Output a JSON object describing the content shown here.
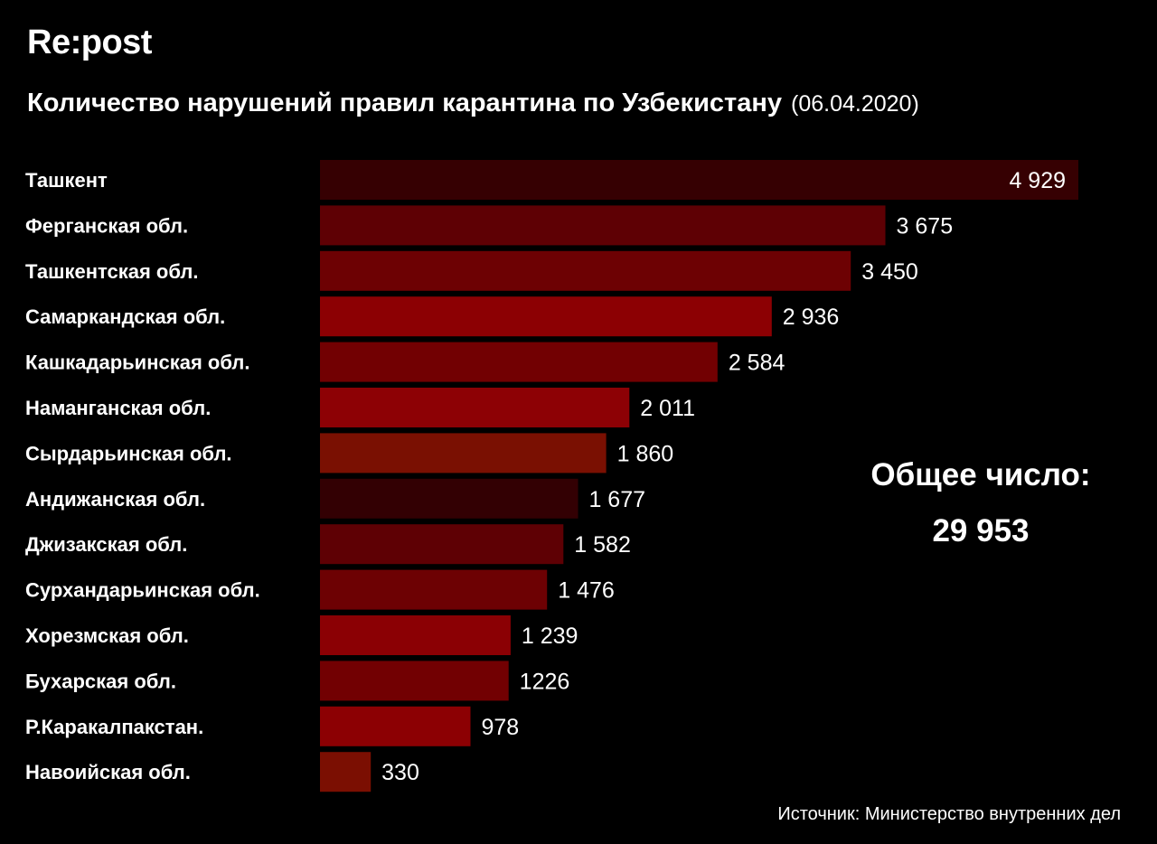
{
  "brand": "Re:post",
  "title": "Количество нарушений правил карантина по Узбекистану",
  "title_date": "(06.04.2020)",
  "total": {
    "label": "Общее число:",
    "value": "29 953"
  },
  "source": "Источник: Министерство внутренних дел",
  "chart_data": {
    "type": "bar",
    "orientation": "horizontal",
    "categories": [
      "Ташкент",
      "Ферганская обл.",
      "Ташкентская обл.",
      "Самаркандская обл.",
      "Кашкадарьинская обл.",
      "Наманганская обл.",
      "Сырдарьинская обл.",
      "Андижанская обл.",
      "Джизакская обл.",
      "Сурхандарьинская обл.",
      "Хорезмская обл.",
      "Бухарская обл.",
      "Р.Каракалпакстан.",
      "Навоийская обл."
    ],
    "values": [
      4929,
      3675,
      3450,
      2936,
      2584,
      2011,
      1860,
      1677,
      1582,
      1476,
      1239,
      1226,
      978,
      330
    ],
    "value_labels": [
      "4 929",
      "3 675",
      "3 450",
      "2 936",
      "2 584",
      "2 011",
      "1 860",
      "1 677",
      "1 582",
      "1 476",
      "1 239",
      "1226",
      "978",
      "330"
    ],
    "bar_colors": [
      "#360002",
      "#5e0004",
      "#6d0103",
      "#8c0003",
      "#720002",
      "#8d0105",
      "#7a1002",
      "#330003",
      "#5e0004",
      "#6d0103",
      "#8b0004",
      "#720002",
      "#8c0003",
      "#7b0f02"
    ],
    "xlim": [
      0,
      4929
    ],
    "grid": false,
    "legend": "none"
  }
}
